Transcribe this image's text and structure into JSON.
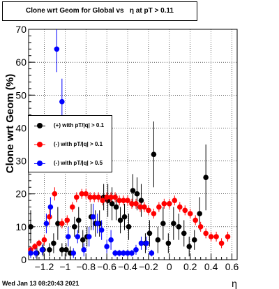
{
  "title": "Clone wrt Geom for Global vs   η at pT > 0.11",
  "timestamp": "Wed Jan 13 08:20:43 2021",
  "chart_data": {
    "type": "scatter",
    "title": "Clone wrt Geom for Global vs   η at pT > 0.11",
    "xlabel": "η",
    "ylabel": "Clone wrt Geom (%)",
    "xlim": [
      -1.35,
      0.65
    ],
    "ylim": [
      0,
      70
    ],
    "x_ticks": [
      -1.2,
      -1.0,
      -0.8,
      -0.6,
      -0.4,
      -0.2,
      0,
      0.2,
      0.4,
      0.6
    ],
    "x_tick_labels": [
      "−1.2",
      "−1",
      "−0.8",
      "−0.6",
      "−0.4",
      "−0.2",
      "0",
      "0.2",
      "0.4",
      "0.6"
    ],
    "y_ticks": [
      0,
      10,
      20,
      30,
      40,
      50,
      60,
      70
    ],
    "y_tick_labels": [
      "0",
      "10",
      "20",
      "30",
      "40",
      "50",
      "60",
      "70"
    ],
    "grid": true,
    "legend_position": "middle-left",
    "series": [
      {
        "name": "(+) with pT/|q| > 0.1",
        "color": "#000000",
        "points": [
          [
            -1.33,
            10,
            5
          ],
          [
            -1.27,
            2,
            2
          ],
          [
            -1.21,
            3,
            2
          ],
          [
            -1.15,
            3,
            2
          ],
          [
            -1.11,
            5,
            3
          ],
          [
            -1.07,
            11,
            5
          ],
          [
            -1.03,
            3,
            2
          ],
          [
            -0.99,
            3,
            2
          ],
          [
            -0.95,
            2,
            2
          ],
          [
            -0.91,
            10,
            3
          ],
          [
            -0.87,
            12,
            4
          ],
          [
            -0.83,
            6,
            3
          ],
          [
            -0.79,
            7,
            3
          ],
          [
            -0.75,
            13,
            4
          ],
          [
            -0.71,
            11,
            4
          ],
          [
            -0.67,
            11,
            4
          ],
          [
            -0.63,
            19,
            4
          ],
          [
            -0.59,
            18,
            5
          ],
          [
            -0.55,
            17,
            5
          ],
          [
            -0.51,
            16,
            4
          ],
          [
            -0.47,
            12,
            4
          ],
          [
            -0.43,
            13,
            4
          ],
          [
            -0.39,
            10,
            4
          ],
          [
            -0.35,
            21,
            5
          ],
          [
            -0.31,
            20,
            5
          ],
          [
            -0.27,
            18,
            5
          ],
          [
            -0.23,
            5,
            3
          ],
          [
            -0.19,
            8,
            4
          ],
          [
            -0.15,
            32,
            10
          ],
          [
            -0.11,
            6,
            4
          ],
          [
            -0.06,
            11,
            5
          ],
          [
            -0.01,
            5,
            3
          ],
          [
            0.04,
            11,
            5
          ],
          [
            0.09,
            10,
            4
          ],
          [
            0.14,
            8,
            4
          ],
          [
            0.19,
            4,
            3
          ],
          [
            0.24,
            6,
            3
          ],
          [
            0.29,
            14,
            5
          ],
          [
            0.35,
            25,
            10
          ]
        ]
      },
      {
        "name": "(-) with pT/|q| > 0.1",
        "color": "#ff0000",
        "points": [
          [
            -1.33,
            3,
            1
          ],
          [
            -1.29,
            4,
            1
          ],
          [
            -1.25,
            5,
            1
          ],
          [
            -1.2,
            6,
            1.5
          ],
          [
            -1.15,
            13,
            2.5
          ],
          [
            -1.1,
            20,
            2
          ],
          [
            -1.03,
            11,
            1.5
          ],
          [
            -0.98,
            12,
            1.5
          ],
          [
            -0.93,
            16,
            1.5
          ],
          [
            -0.89,
            19,
            1.5
          ],
          [
            -0.84,
            20,
            1.5
          ],
          [
            -0.8,
            20,
            1.5
          ],
          [
            -0.76,
            19,
            1.5
          ],
          [
            -0.72,
            19,
            1.5
          ],
          [
            -0.68,
            19,
            1.5
          ],
          [
            -0.64,
            18,
            1.5
          ],
          [
            -0.6,
            19,
            1.5
          ],
          [
            -0.56,
            19,
            1.5
          ],
          [
            -0.52,
            19,
            1.5
          ],
          [
            -0.48,
            18,
            1.5
          ],
          [
            -0.44,
            18,
            1.5
          ],
          [
            -0.4,
            18,
            1.5
          ],
          [
            -0.36,
            17,
            1.5
          ],
          [
            -0.32,
            17,
            1.5
          ],
          [
            -0.28,
            16,
            1.5
          ],
          [
            -0.24,
            16,
            1.5
          ],
          [
            -0.2,
            15,
            1.5
          ],
          [
            -0.15,
            14,
            1.5
          ],
          [
            -0.1,
            16,
            1.5
          ],
          [
            -0.05,
            17,
            1.5
          ],
          [
            0.0,
            17,
            1.5
          ],
          [
            0.05,
            18,
            1.5
          ],
          [
            0.1,
            16,
            1.5
          ],
          [
            0.15,
            15,
            1.5
          ],
          [
            0.2,
            14,
            1.5
          ],
          [
            0.25,
            12,
            1.5
          ],
          [
            0.3,
            10,
            1.5
          ],
          [
            0.35,
            8,
            1.5
          ],
          [
            0.4,
            7,
            1.5
          ],
          [
            0.45,
            7,
            1.5
          ],
          [
            0.5,
            5,
            1.5
          ],
          [
            0.56,
            7,
            1.5
          ]
        ]
      },
      {
        "name": "(-) with pT/|q| > 0.5",
        "color": "#0000ff",
        "points": [
          [
            -1.33,
            2,
            1.5
          ],
          [
            -1.28,
            2,
            1.5
          ],
          [
            -1.22,
            3,
            1.5
          ],
          [
            -1.18,
            11,
            3
          ],
          [
            -1.14,
            16,
            3
          ],
          [
            -1.08,
            64,
            7
          ],
          [
            -1.03,
            48,
            7
          ],
          [
            -0.97,
            7,
            3
          ],
          [
            -0.92,
            2,
            1.5
          ],
          [
            -0.88,
            7,
            2
          ],
          [
            -0.82,
            3,
            2
          ],
          [
            -0.77,
            7,
            3
          ],
          [
            -0.73,
            13,
            4
          ],
          [
            -0.69,
            11,
            3
          ],
          [
            -0.65,
            9,
            3
          ],
          [
            -0.6,
            4,
            2
          ],
          [
            -0.56,
            6,
            3
          ],
          [
            -0.52,
            2,
            1
          ],
          [
            -0.48,
            2,
            1
          ],
          [
            -0.44,
            2,
            1
          ],
          [
            -0.4,
            2,
            1
          ],
          [
            -0.36,
            2,
            1
          ],
          [
            -0.32,
            3,
            1.5
          ],
          [
            -0.27,
            5,
            2
          ],
          [
            -0.22,
            5,
            2
          ],
          [
            -0.17,
            2,
            1
          ]
        ]
      }
    ]
  }
}
